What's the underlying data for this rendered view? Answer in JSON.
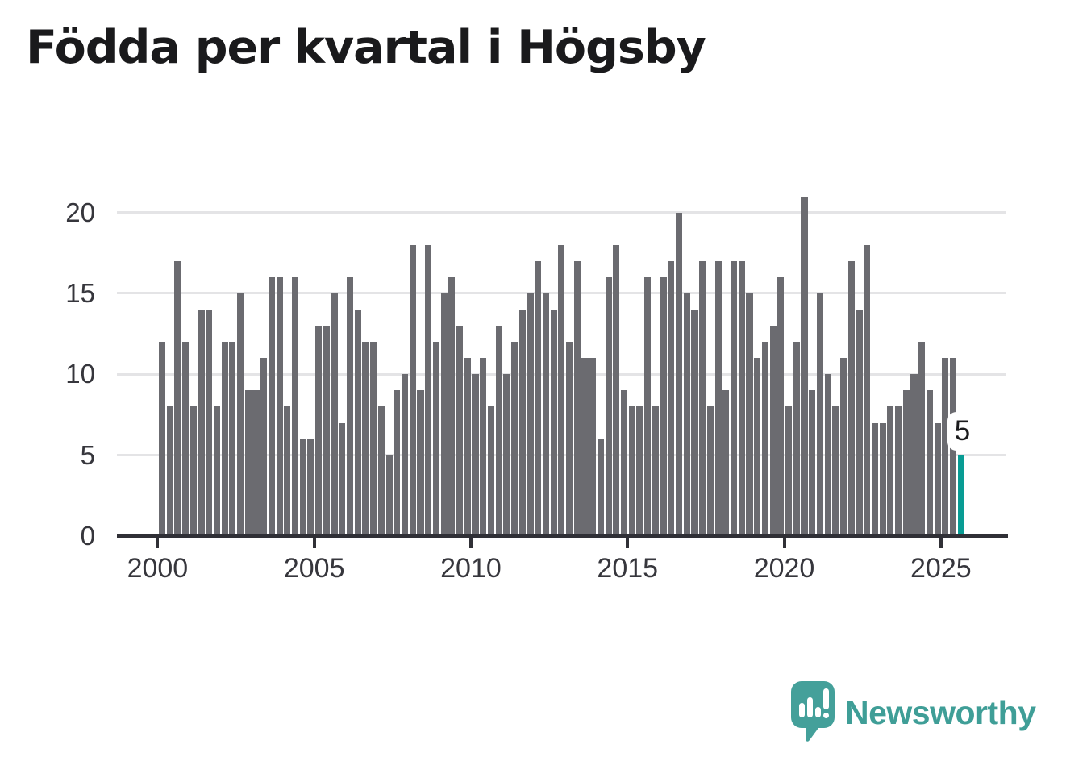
{
  "title": "Födda per kvartal i Högsby",
  "annotation": {
    "label": "5"
  },
  "logo": {
    "name": "Newsworthy"
  },
  "colors": {
    "bar": "#6b6b70",
    "highlight": "#089c94",
    "grid": "#e4e4e6",
    "axis": "#303036",
    "label": "#36363c",
    "title": "#1a1a1c",
    "logo": "#3f9e97"
  },
  "chart_data": {
    "type": "bar",
    "title": "Födda per kvartal i Högsby",
    "xlabel": "",
    "ylabel": "",
    "x_start": "2000-Q1",
    "x_end": "2025-Q3",
    "x_tick_labels": [
      "2000",
      "2005",
      "2010",
      "2015",
      "2020",
      "2025"
    ],
    "y_ticks": [
      0,
      5,
      10,
      15,
      20
    ],
    "ylim": [
      0,
      22
    ],
    "grid": true,
    "legend": false,
    "highlight_last": true,
    "quarters": [
      "2000Q1",
      "2000Q2",
      "2000Q3",
      "2000Q4",
      "2001Q1",
      "2001Q2",
      "2001Q3",
      "2001Q4",
      "2002Q1",
      "2002Q2",
      "2002Q3",
      "2002Q4",
      "2003Q1",
      "2003Q2",
      "2003Q3",
      "2003Q4",
      "2004Q1",
      "2004Q2",
      "2004Q3",
      "2004Q4",
      "2005Q1",
      "2005Q2",
      "2005Q3",
      "2005Q4",
      "2006Q1",
      "2006Q2",
      "2006Q3",
      "2006Q4",
      "2007Q1",
      "2007Q2",
      "2007Q3",
      "2007Q4",
      "2008Q1",
      "2008Q2",
      "2008Q3",
      "2008Q4",
      "2009Q1",
      "2009Q2",
      "2009Q3",
      "2009Q4",
      "2010Q1",
      "2010Q2",
      "2010Q3",
      "2010Q4",
      "2011Q1",
      "2011Q2",
      "2011Q3",
      "2011Q4",
      "2012Q1",
      "2012Q2",
      "2012Q3",
      "2012Q4",
      "2013Q1",
      "2013Q2",
      "2013Q3",
      "2013Q4",
      "2014Q1",
      "2014Q2",
      "2014Q3",
      "2014Q4",
      "2015Q1",
      "2015Q2",
      "2015Q3",
      "2015Q4",
      "2016Q1",
      "2016Q2",
      "2016Q3",
      "2016Q4",
      "2017Q1",
      "2017Q2",
      "2017Q3",
      "2017Q4",
      "2018Q1",
      "2018Q2",
      "2018Q3",
      "2018Q4",
      "2019Q1",
      "2019Q2",
      "2019Q3",
      "2019Q4",
      "2020Q1",
      "2020Q2",
      "2020Q3",
      "2020Q4",
      "2021Q1",
      "2021Q2",
      "2021Q3",
      "2021Q4",
      "2022Q1",
      "2022Q2",
      "2022Q3",
      "2022Q4",
      "2023Q1",
      "2023Q2",
      "2023Q3",
      "2023Q4",
      "2024Q1",
      "2024Q2",
      "2024Q3",
      "2024Q4",
      "2025Q1",
      "2025Q2",
      "2025Q3"
    ],
    "values": [
      12,
      8,
      17,
      12,
      8,
      14,
      14,
      8,
      12,
      12,
      15,
      9,
      9,
      11,
      16,
      16,
      8,
      16,
      6,
      6,
      13,
      13,
      15,
      7,
      16,
      14,
      12,
      12,
      8,
      5,
      9,
      10,
      18,
      9,
      18,
      12,
      15,
      16,
      13,
      11,
      10,
      11,
      8,
      13,
      10,
      12,
      14,
      15,
      17,
      15,
      14,
      18,
      12,
      17,
      11,
      11,
      6,
      16,
      18,
      9,
      8,
      8,
      16,
      8,
      16,
      17,
      20,
      15,
      14,
      17,
      8,
      17,
      9,
      17,
      17,
      15,
      11,
      12,
      13,
      16,
      8,
      12,
      21,
      9,
      15,
      10,
      8,
      11,
      17,
      14,
      18,
      7,
      7,
      8,
      8,
      9,
      10,
      12,
      9,
      7,
      11,
      11,
      5
    ]
  }
}
